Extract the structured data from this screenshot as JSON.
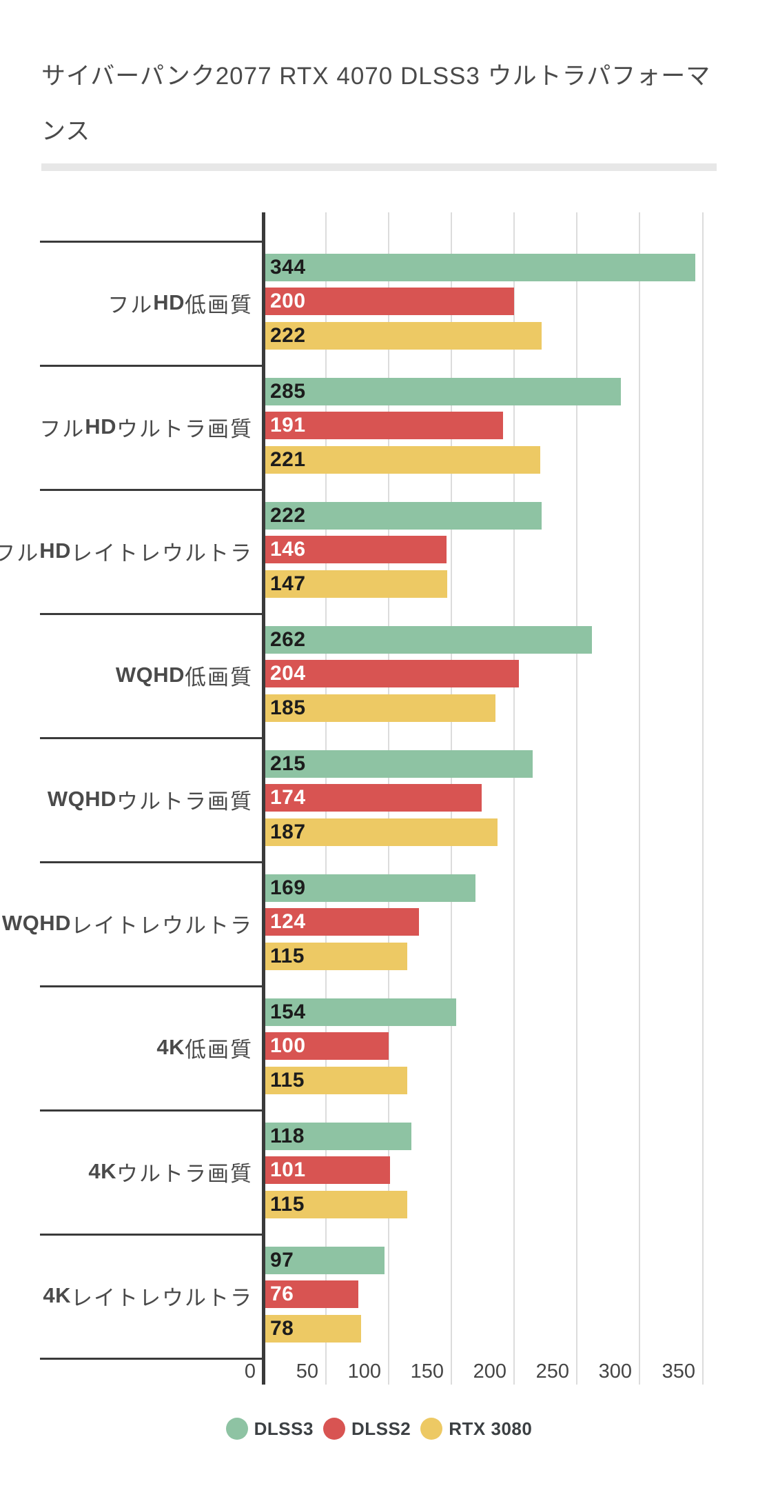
{
  "title": {
    "text": "サイバーパンク2077 RTX 4070 DLSS3 ウルトラパフォーマンス",
    "color": "#4a4a4a"
  },
  "chart_data": {
    "type": "bar",
    "orientation": "horizontal",
    "title": "サイバーパンク2077 RTX 4070 DLSS3 ウルトラパフォーマンス",
    "categories": [
      "フルHD低画質",
      "フルHDウルトラ画質",
      "フルHDレイトレウルトラ",
      "WQHD低画質",
      "WQHDウルトラ画質",
      "WQHDレイトレウルトラ",
      "4K低画質",
      "4Kウルトラ画質",
      "4Kレイトレウルトラ"
    ],
    "category_parts": [
      [
        "フル",
        "HD",
        "低画質"
      ],
      [
        "フル",
        "HD",
        "ウルトラ画質"
      ],
      [
        "フル",
        "HD",
        "レイトレウルトラ"
      ],
      [
        "",
        "WQHD",
        "低画質"
      ],
      [
        "",
        "WQHD",
        "ウルトラ画質"
      ],
      [
        "",
        "WQHD",
        "レイトレウルトラ"
      ],
      [
        "",
        "4K",
        "低画質"
      ],
      [
        "",
        "4K",
        "ウルトラ画質"
      ],
      [
        "",
        "4K",
        "レイトレウルトラ"
      ]
    ],
    "series": [
      {
        "name": "DLSS3",
        "color": "#8ec3a3",
        "value_label_color": "#1c1c1c",
        "values": [
          344,
          285,
          222,
          262,
          215,
          169,
          154,
          118,
          97
        ]
      },
      {
        "name": "DLSS2",
        "color": "#d85452",
        "value_label_color": "#ffffff",
        "values": [
          200,
          191,
          146,
          204,
          174,
          124,
          100,
          101,
          76
        ]
      },
      {
        "name": "RTX 3080",
        "color": "#edc964",
        "value_label_color": "#1c1c1c",
        "values": [
          222,
          221,
          147,
          185,
          187,
          115,
          115,
          115,
          78
        ]
      }
    ],
    "x_ticks": [
      "0",
      "50",
      "100",
      "150",
      "200",
      "250",
      "300",
      "350"
    ],
    "x_tick_values": [
      0,
      50,
      100,
      150,
      200,
      250,
      300,
      350
    ],
    "xlim": [
      0,
      392
    ],
    "grid": true,
    "value_labels": "inside-start",
    "legend_position": "bottom",
    "axis_color": "#3a3a3a",
    "grid_color": "#dcdcdc",
    "tick_label_color": "#454545",
    "category_label_color": "#4a4a4a",
    "background": "#ffffff"
  },
  "legend": {
    "items": [
      {
        "label": "DLSS3",
        "color": "#8ec3a3"
      },
      {
        "label": "DLSS2",
        "color": "#d85452"
      },
      {
        "label": "RTX 3080",
        "color": "#edc964"
      }
    ],
    "text_color": "#3c4043"
  }
}
